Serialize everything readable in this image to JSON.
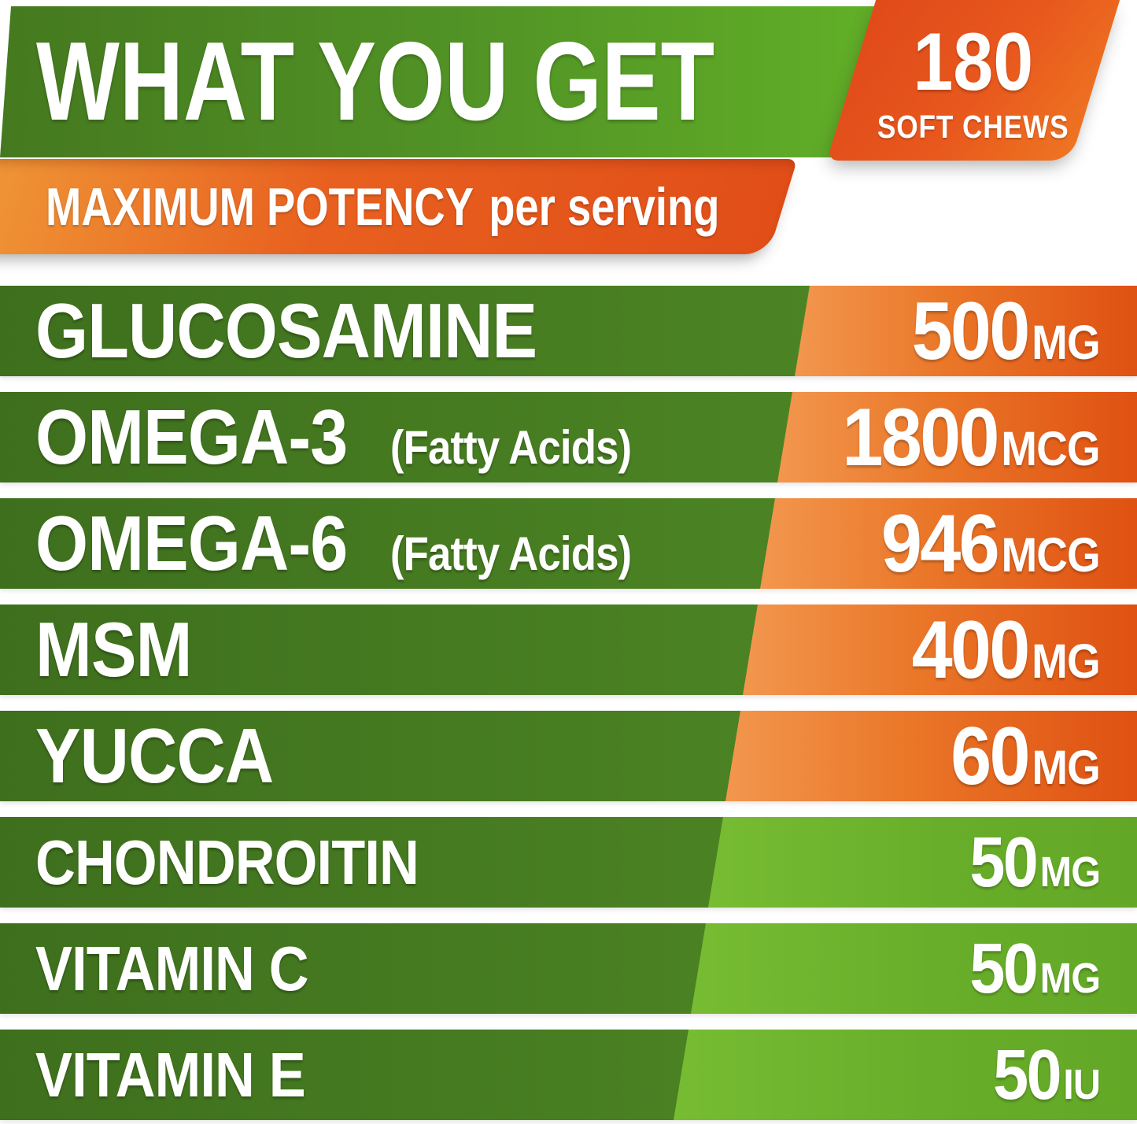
{
  "header": {
    "title": "WHAT YOU GET",
    "badge": {
      "count": "180",
      "unit": "SOFT CHEWS"
    }
  },
  "subheader": {
    "bold": "MAXIMUM POTENCY",
    "regular": "per serving"
  },
  "ingredients": [
    {
      "name": "GLUCOSAMINE",
      "amount": "500",
      "unit": "MG",
      "style": "orange"
    },
    {
      "name": "OMEGA-3",
      "note": "(Fatty Acids)",
      "amount": "1800",
      "unit": "MCG",
      "style": "orange"
    },
    {
      "name": "OMEGA-6",
      "note": "(Fatty Acids)",
      "amount": "946",
      "unit": "MCG",
      "style": "orange"
    },
    {
      "name": "MSM",
      "amount": "400",
      "unit": "MG",
      "style": "orange"
    },
    {
      "name": "YUCCA",
      "amount": "60",
      "unit": "MG",
      "style": "orange"
    },
    {
      "name": "CHONDROITIN",
      "amount": "50",
      "unit": "MG",
      "style": "green"
    },
    {
      "name": "VITAMIN C",
      "amount": "50",
      "unit": "MG",
      "style": "green"
    },
    {
      "name": "VITAMIN E",
      "amount": "50",
      "unit": "IU",
      "style": "green"
    }
  ],
  "colors": {
    "header_green_dark": "#45791f",
    "header_green_bright": "#62b027",
    "row_green_dark": "#3e6f1d",
    "value_orange_light": "#f2974e",
    "value_orange_dark": "#df5112",
    "value_green_light": "#77bc32",
    "value_green_dark": "#63a726",
    "ribbon_orange_light": "#f09a38",
    "ribbon_orange_dark": "#e14e18",
    "text": "#ffffff"
  }
}
